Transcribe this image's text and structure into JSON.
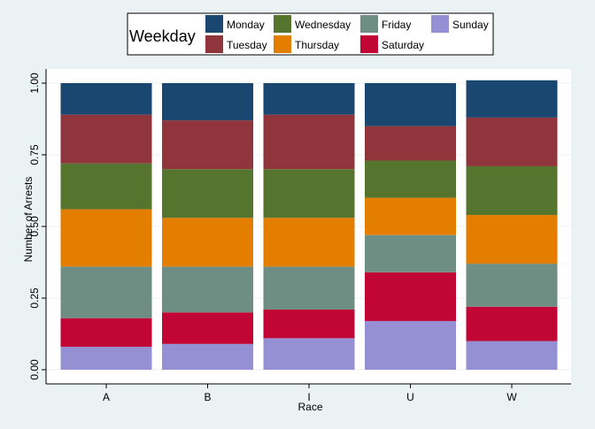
{
  "chart_data": {
    "type": "bar",
    "stacked": true,
    "title": "",
    "xlabel": "Race",
    "ylabel": "Number of Arrests",
    "ylim": [
      0,
      1
    ],
    "yticks": [
      0,
      0.25,
      0.5,
      0.75,
      1
    ],
    "ytick_labels": [
      "0.00",
      "0.25",
      "0.50",
      "0.75",
      "1.00"
    ],
    "categories": [
      "A",
      "B",
      "I",
      "U",
      "W"
    ],
    "legend": {
      "title": "Weekday",
      "placement": "top"
    },
    "series": [
      {
        "name": "Sunday",
        "color": "#9590d4",
        "values": [
          0.08,
          0.09,
          0.11,
          0.17,
          0.1
        ]
      },
      {
        "name": "Saturday",
        "color": "#c10534",
        "values": [
          0.1,
          0.11,
          0.1,
          0.17,
          0.12
        ]
      },
      {
        "name": "Friday",
        "color": "#6e8e84",
        "values": [
          0.18,
          0.16,
          0.15,
          0.13,
          0.15
        ]
      },
      {
        "name": "Thursday",
        "color": "#e37e00",
        "values": [
          0.2,
          0.17,
          0.17,
          0.13,
          0.17
        ]
      },
      {
        "name": "Wednesday",
        "color": "#55752f",
        "values": [
          0.16,
          0.17,
          0.17,
          0.13,
          0.17
        ]
      },
      {
        "name": "Tuesday",
        "color": "#90353b",
        "values": [
          0.17,
          0.17,
          0.19,
          0.12,
          0.17
        ]
      },
      {
        "name": "Monday",
        "color": "#1a476f",
        "values": [
          0.11,
          0.13,
          0.11,
          0.15,
          0.13
        ]
      }
    ],
    "legend_order": [
      "Monday",
      "Wednesday",
      "Friday",
      "Sunday",
      "Tuesday",
      "Thursday",
      "Saturday"
    ]
  }
}
